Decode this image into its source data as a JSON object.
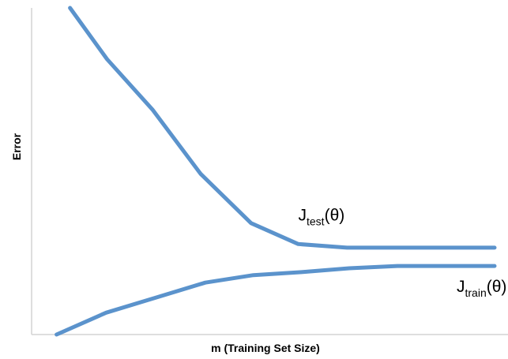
{
  "chart_data": {
    "type": "line",
    "title": "",
    "xlabel": "m (Training Set Size)",
    "ylabel": "Error",
    "xlim": [
      0,
      100
    ],
    "ylim": [
      0,
      100
    ],
    "grid": false,
    "legend": "none",
    "series": [
      {
        "name": "J_test(θ)",
        "label_main": "J",
        "label_sub": "test",
        "label_tail": "(θ)",
        "color": "#5b93cc",
        "x": [
          8.3,
          16.3,
          26.1,
          36.5,
          47.4,
          57.6,
          68.1,
          79.5,
          100
        ],
        "y": [
          100,
          84.3,
          68.9,
          49.2,
          34.1,
          27.7,
          26.6,
          26.6,
          26.6
        ]
      },
      {
        "name": "J_train(θ)",
        "label_main": "J",
        "label_sub": "train",
        "label_tail": "(θ)",
        "color": "#5b93cc",
        "x": [
          5.4,
          16.1,
          26.6,
          37.5,
          47.9,
          58.3,
          68.6,
          79.0,
          100
        ],
        "y": [
          0,
          6.7,
          11.2,
          15.9,
          18.2,
          19.1,
          20.3,
          21.0,
          21.0
        ]
      }
    ]
  }
}
